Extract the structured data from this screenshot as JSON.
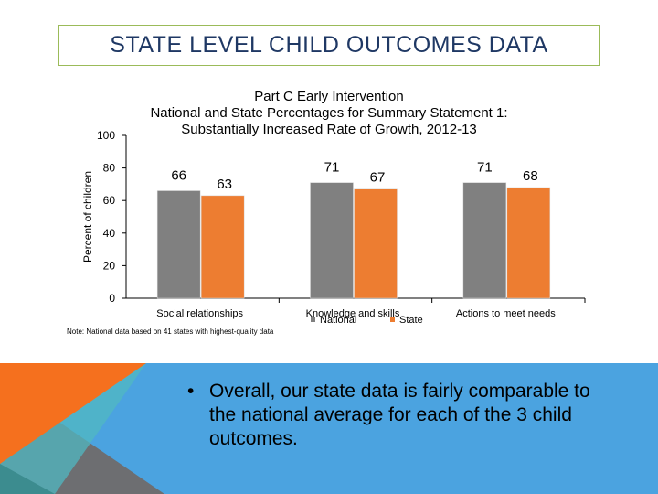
{
  "slide_title": "STATE LEVEL CHILD OUTCOMES DATA",
  "chart_data": {
    "type": "bar",
    "title_lines": [
      "Part C Early Intervention",
      "National and State Percentages for Summary Statement 1:",
      "Substantially Increased Rate of Growth, 2012-13"
    ],
    "categories": [
      "Social relationships",
      "Knowledge and skills",
      "Actions to meet needs"
    ],
    "series": [
      {
        "name": "National",
        "values": [
          66,
          71,
          71
        ],
        "color": "#808080"
      },
      {
        "name": "State",
        "values": [
          63,
          67,
          68
        ],
        "color": "#ed7d31"
      }
    ],
    "ylabel": "Percent of children",
    "xlabel": "",
    "ylim": [
      0,
      100
    ],
    "yticks": [
      0,
      20,
      40,
      60,
      80,
      100
    ],
    "legend": "bottom-center"
  },
  "note": "Note: National data based on 41 states with highest-quality data",
  "bullet": {
    "marker": "•",
    "text": "Overall, our state data is  fairly comparable to the national average for each of the 3 child outcomes."
  },
  "colors": {
    "blue": "#4ba3e0",
    "orange": "#f5701e",
    "gray": "#7f7f7f",
    "teal": "#50b8c2"
  }
}
